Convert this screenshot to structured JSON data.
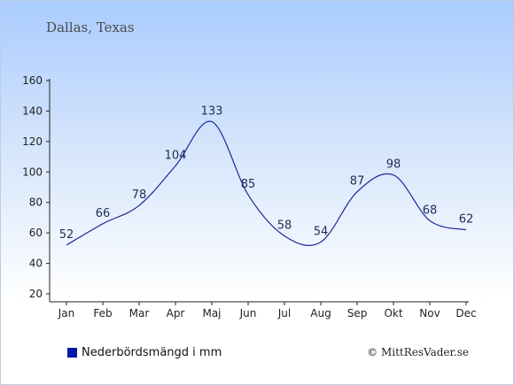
{
  "header": {
    "location": "Dallas, Texas"
  },
  "legend": {
    "label": "Nederbördsmängd i mm",
    "color": "#0016a6"
  },
  "footer": {
    "copyright": "© MittResVader.se"
  },
  "chart_data": {
    "type": "line",
    "categories": [
      "Jan",
      "Feb",
      "Mar",
      "Apr",
      "Maj",
      "Jun",
      "Jul",
      "Aug",
      "Sep",
      "Okt",
      "Nov",
      "Dec"
    ],
    "series": [
      {
        "name": "Nederbördsmängd i mm",
        "values": [
          52,
          66,
          78,
          104,
          133,
          85,
          58,
          54,
          87,
          98,
          68,
          62
        ],
        "color": "#1a2a9a"
      }
    ],
    "yticks": [
      20,
      40,
      60,
      80,
      100,
      120,
      140,
      160
    ],
    "ylim": [
      20,
      160
    ],
    "grid": false,
    "legend_position": "bottom-left"
  }
}
